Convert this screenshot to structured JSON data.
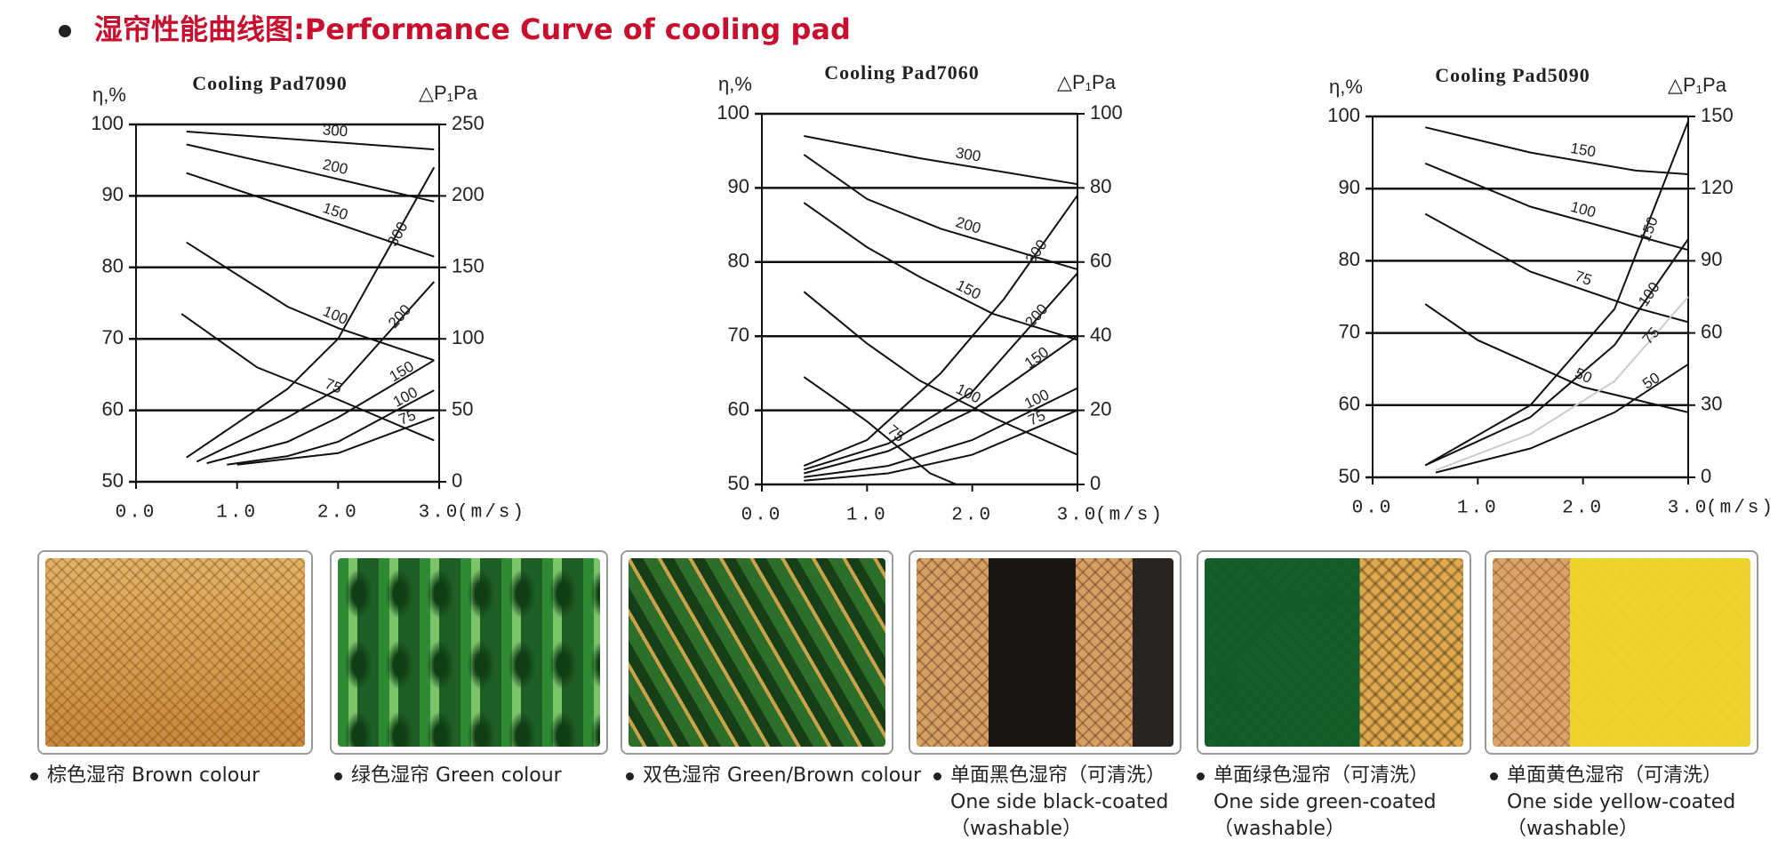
{
  "header": {
    "title": "湿帘性能曲线图:Performance Curve of cooling pad"
  },
  "chart_data": [
    {
      "type": "line",
      "title": "Cooling Pad7090",
      "ylabel": "η,%",
      "y2label": "△P₁Pa",
      "xlabel": "(m/s)",
      "xlim": [
        0,
        3
      ],
      "xticks": [
        {
          "value": 0,
          "label": "0.0"
        },
        {
          "value": 1,
          "label": "1.0"
        },
        {
          "value": 2,
          "label": "2.0"
        },
        {
          "value": 3,
          "label": "3.0"
        }
      ],
      "ylim": [
        50,
        100
      ],
      "yticks": [
        50,
        60,
        70,
        80,
        90,
        100
      ],
      "y2lim": [
        0,
        250
      ],
      "y2ticks": [
        0,
        50,
        100,
        150,
        200,
        250
      ],
      "grid": true,
      "series": [
        {
          "name": "300",
          "color": "#111111",
          "x": [
            0.5,
            1.5,
            2.95
          ],
          "values": [
            99,
            98,
            96.5
          ]
        },
        {
          "name": "200",
          "color": "#111111",
          "x": [
            0.5,
            1.5,
            2.95
          ],
          "values": [
            97.2,
            94,
            89.2
          ]
        },
        {
          "name": "150",
          "color": "#111111",
          "x": [
            0.5,
            1.5,
            2.95
          ],
          "values": [
            93.2,
            88.5,
            81.5
          ]
        },
        {
          "name": "100",
          "color": "#111111",
          "x": [
            0.5,
            1.5,
            2.0,
            2.95
          ],
          "values": [
            83.5,
            74.5,
            71.5,
            67
          ]
        },
        {
          "name": "75",
          "color": "#111111",
          "x": [
            0.45,
            1.2,
            2.0,
            2.95
          ],
          "values": [
            73.5,
            66,
            61.5,
            55.8
          ]
        },
        {
          "name": "300",
          "color": "#111111",
          "axis": "y2",
          "x": [
            0.5,
            1.5,
            2.0,
            2.95
          ],
          "values": [
            17,
            65,
            100,
            220
          ]
        },
        {
          "name": "200",
          "color": "#111111",
          "axis": "y2",
          "x": [
            0.6,
            1.5,
            2.0,
            2.95
          ],
          "values": [
            14,
            45,
            65,
            140
          ]
        },
        {
          "name": "150",
          "color": "#111111",
          "axis": "y2",
          "x": [
            0.7,
            1.5,
            2.0,
            2.95
          ],
          "values": [
            13,
            28,
            45,
            85
          ]
        },
        {
          "name": "100",
          "color": "#111111",
          "axis": "y2",
          "x": [
            0.9,
            1.5,
            2.0,
            2.95
          ],
          "values": [
            12,
            18,
            28,
            64
          ]
        },
        {
          "name": "75",
          "color": "#111111",
          "axis": "y2",
          "x": [
            1.0,
            2.0,
            2.95
          ],
          "values": [
            12,
            20,
            45
          ]
        }
      ]
    },
    {
      "type": "line",
      "title": "Cooling Pad7060",
      "ylabel": "η,%",
      "y2label": "△P₁Pa",
      "xlabel": "(m/s)",
      "xlim": [
        0,
        3
      ],
      "xticks": [
        {
          "value": 0,
          "label": "0.0"
        },
        {
          "value": 1,
          "label": "1.0"
        },
        {
          "value": 2,
          "label": "2.0"
        },
        {
          "value": 3,
          "label": "3.0"
        }
      ],
      "ylim": [
        50,
        100
      ],
      "yticks": [
        50,
        60,
        70,
        80,
        90,
        100
      ],
      "y2lim": [
        0,
        100
      ],
      "y2ticks": [
        0,
        20,
        40,
        60,
        80,
        100
      ],
      "grid": true,
      "series": [
        {
          "name": "300",
          "color": "#111111",
          "x": [
            0.4,
            1.5,
            3.0
          ],
          "values": [
            97,
            94,
            90.5
          ]
        },
        {
          "name": "200",
          "color": "#111111",
          "x": [
            0.4,
            1.0,
            1.7,
            3.0
          ],
          "values": [
            94.5,
            88.5,
            84.5,
            79
          ]
        },
        {
          "name": "150",
          "color": "#111111",
          "x": [
            0.4,
            1.0,
            1.5,
            2.2,
            3.0
          ],
          "values": [
            88,
            82,
            78,
            73,
            69.5
          ]
        },
        {
          "name": "100",
          "color": "#111111",
          "x": [
            0.4,
            1.0,
            1.5,
            2.2,
            3.0
          ],
          "values": [
            76,
            69,
            64,
            59,
            54
          ]
        },
        {
          "name": "75",
          "color": "#111111",
          "x": [
            0.4,
            1.0,
            1.6,
            1.85
          ],
          "values": [
            64.5,
            58.5,
            51.5,
            50
          ]
        },
        {
          "name": "300",
          "color": "#111111",
          "axis": "y2",
          "x": [
            0.4,
            1.0,
            1.7,
            2.3,
            3.0
          ],
          "values": [
            5,
            12,
            30,
            50,
            78
          ]
        },
        {
          "name": "200",
          "color": "#111111",
          "axis": "y2",
          "x": [
            0.4,
            1.2,
            2.0,
            3.0
          ],
          "values": [
            4,
            11,
            25,
            57
          ]
        },
        {
          "name": "150",
          "color": "#111111",
          "axis": "y2",
          "x": [
            0.4,
            1.2,
            2.0,
            3.0
          ],
          "values": [
            3,
            9,
            20,
            40
          ]
        },
        {
          "name": "100",
          "color": "#111111",
          "axis": "y2",
          "x": [
            0.4,
            1.2,
            2.0,
            3.0
          ],
          "values": [
            2,
            5,
            12,
            26
          ]
        },
        {
          "name": "75",
          "color": "#111111",
          "axis": "y2",
          "x": [
            0.4,
            1.2,
            2.0,
            3.0
          ],
          "values": [
            1,
            3,
            8,
            20
          ]
        }
      ]
    },
    {
      "type": "line",
      "title": "Cooling Pad5090",
      "ylabel": "η,%",
      "y2label": "△P₁Pa",
      "xlabel": "(m/s)",
      "xlim": [
        0,
        3
      ],
      "xticks": [
        {
          "value": 0,
          "label": "0.0"
        },
        {
          "value": 1,
          "label": "1.0"
        },
        {
          "value": 2,
          "label": "2.0"
        },
        {
          "value": 3,
          "label": "3.0"
        }
      ],
      "ylim": [
        50,
        100
      ],
      "yticks": [
        50,
        60,
        70,
        80,
        90,
        100
      ],
      "y2lim": [
        0,
        150
      ],
      "y2ticks": [
        0,
        30,
        60,
        90,
        120,
        150
      ],
      "grid": true,
      "series": [
        {
          "name": "150",
          "color": "#111111",
          "x": [
            0.5,
            1.5,
            2.5,
            3.0
          ],
          "values": [
            98.5,
            95,
            92.5,
            92
          ]
        },
        {
          "name": "100",
          "color": "#111111",
          "x": [
            0.5,
            1.5,
            2.5,
            3.0
          ],
          "values": [
            93.5,
            87.5,
            83.5,
            81.5
          ]
        },
        {
          "name": "75",
          "color": "#111111",
          "x": [
            0.5,
            1.5,
            2.5,
            3.0
          ],
          "values": [
            86.5,
            78.5,
            73.5,
            71.5
          ]
        },
        {
          "name": "50",
          "color": "#111111",
          "x": [
            0.5,
            1.0,
            2.0,
            3.0
          ],
          "values": [
            74,
            69,
            62.5,
            59
          ]
        },
        {
          "name": "150",
          "color": "#111111",
          "axis": "y2",
          "x": [
            0.5,
            1.5,
            2.3,
            3.0
          ],
          "values": [
            5,
            30,
            70,
            148
          ]
        },
        {
          "name": "100",
          "color": "#111111",
          "axis": "y2",
          "x": [
            0.5,
            1.5,
            2.3,
            3.0
          ],
          "values": [
            5,
            25,
            55,
            99
          ]
        },
        {
          "name": "75",
          "color": "#cccccc",
          "axis": "y2",
          "x": [
            0.6,
            1.5,
            2.3,
            3.0
          ],
          "values": [
            3,
            18,
            40,
            75
          ]
        },
        {
          "name": "50",
          "color": "#111111",
          "axis": "y2",
          "x": [
            0.6,
            1.5,
            2.3,
            3.0
          ],
          "values": [
            2,
            12,
            27,
            47
          ]
        }
      ]
    }
  ],
  "products": [
    {
      "caption": [
        "棕色湿帘  Brown colour"
      ]
    },
    {
      "caption": [
        "绿色湿帘 Green colour"
      ]
    },
    {
      "caption": [
        "双色湿帘 Green/Brown colour"
      ]
    },
    {
      "caption": [
        "单面黑色湿帘（可清洗）",
        "One side black-coated",
        "（washable）"
      ]
    },
    {
      "caption": [
        "单面绿色湿帘（可清洗）",
        "One side green-coated",
        "（washable）"
      ]
    },
    {
      "caption": [
        "单面黄色湿帘（可清洗）",
        "One side yellow-coated",
        "（washable）"
      ]
    }
  ]
}
